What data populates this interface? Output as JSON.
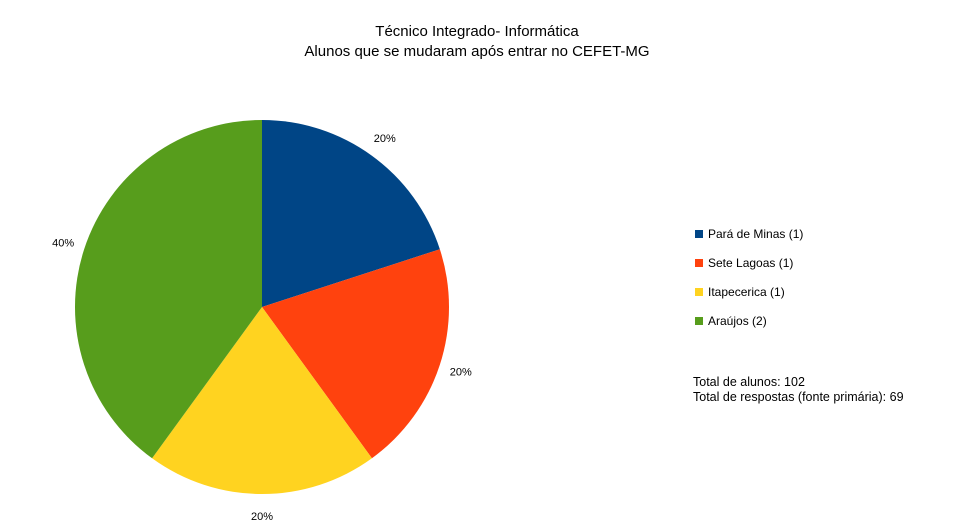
{
  "chart_data": {
    "type": "pie",
    "title": "Técnico Integrado- Informática",
    "subtitle": "Alunos que se mudaram após entrar no CEFET-MG",
    "slices": [
      {
        "label": "Pará de Minas (1)",
        "value": 1,
        "percent_label": "20%",
        "color": "#004586"
      },
      {
        "label": "Sete Lagoas (1)",
        "value": 1,
        "percent_label": "20%",
        "color": "#ff420e"
      },
      {
        "label": "Itapecerica (1)",
        "value": 1,
        "percent_label": "20%",
        "color": "#ffd320"
      },
      {
        "label": "Araújos (2)",
        "value": 2,
        "percent_label": "40%",
        "color": "#579d1c"
      }
    ],
    "legend_position": "right",
    "notes": [
      "Total de alunos: 102",
      "Total de respostas (fonte primária): 69"
    ]
  }
}
